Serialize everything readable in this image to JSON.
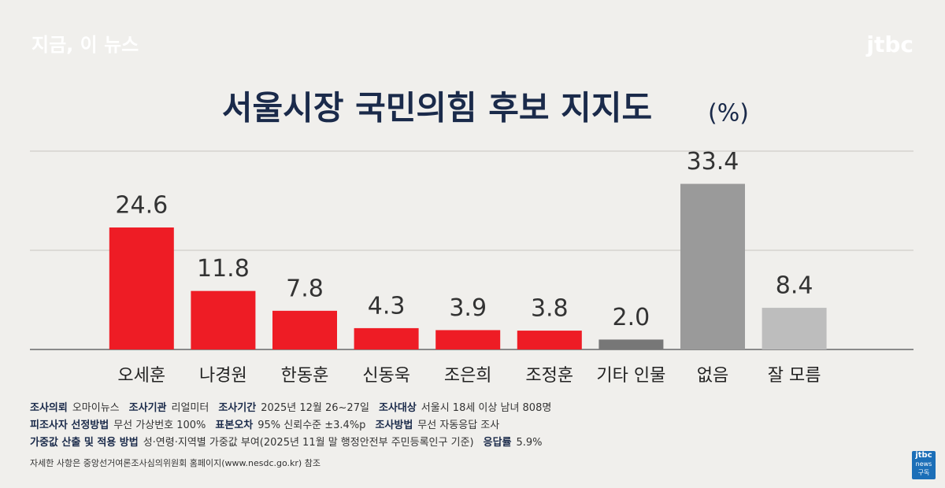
{
  "header": {
    "program": "지금, 이 뉴스",
    "logo": "jtbc"
  },
  "chart_data": {
    "type": "bar",
    "title": "서울시장 국민의힘 후보 지지도",
    "unit": "(%)",
    "categories": [
      "오세훈",
      "나경원",
      "한동훈",
      "신동욱",
      "조은희",
      "조정훈",
      "기타 인물",
      "없음",
      "잘 모름"
    ],
    "values": [
      24.6,
      11.8,
      7.8,
      4.3,
      3.9,
      3.8,
      2.0,
      33.4,
      8.4
    ],
    "value_labels": [
      "24.6",
      "11.8",
      "7.8",
      "4.3",
      "3.9",
      "3.8",
      "2.0",
      "33.4",
      "8.4"
    ],
    "colors": [
      "#ee1c25",
      "#ee1c25",
      "#ee1c25",
      "#ee1c25",
      "#ee1c25",
      "#ee1c25",
      "#777777",
      "#9a9a9a",
      "#bdbdbd"
    ],
    "ylim": [
      0,
      40
    ],
    "yticks": [
      0,
      20,
      40
    ],
    "grid": true
  },
  "notes": {
    "rows": [
      [
        [
          "조사의뢰",
          "오마이뉴스"
        ],
        [
          "조사기관",
          "리얼미터"
        ],
        [
          "조사기간",
          "2025년 12월 26~27일"
        ],
        [
          "조사대상",
          "서울시 18세 이상 남녀 808명"
        ]
      ],
      [
        [
          "피조사자 선정방법",
          "무선 가상번호 100%"
        ],
        [
          "표본오차",
          "95% 신뢰수준 ±3.4%p"
        ],
        [
          "조사방법",
          "무선 자동응답 조사"
        ]
      ],
      [
        [
          "가중값 산출 및 적용 방법",
          "성·연령·지역별 가중값 부여(2025년 11월 말 행정안전부 주민등록인구 기준)"
        ],
        [
          "응답률",
          "5.9%"
        ]
      ]
    ],
    "source": "자세한 사항은 중앙선거여론조사심의위원회 홈페이지(www.nesdc.go.kr) 참조"
  },
  "badge": {
    "logo": "jtbc",
    "sub": "news",
    "action": "구독"
  }
}
